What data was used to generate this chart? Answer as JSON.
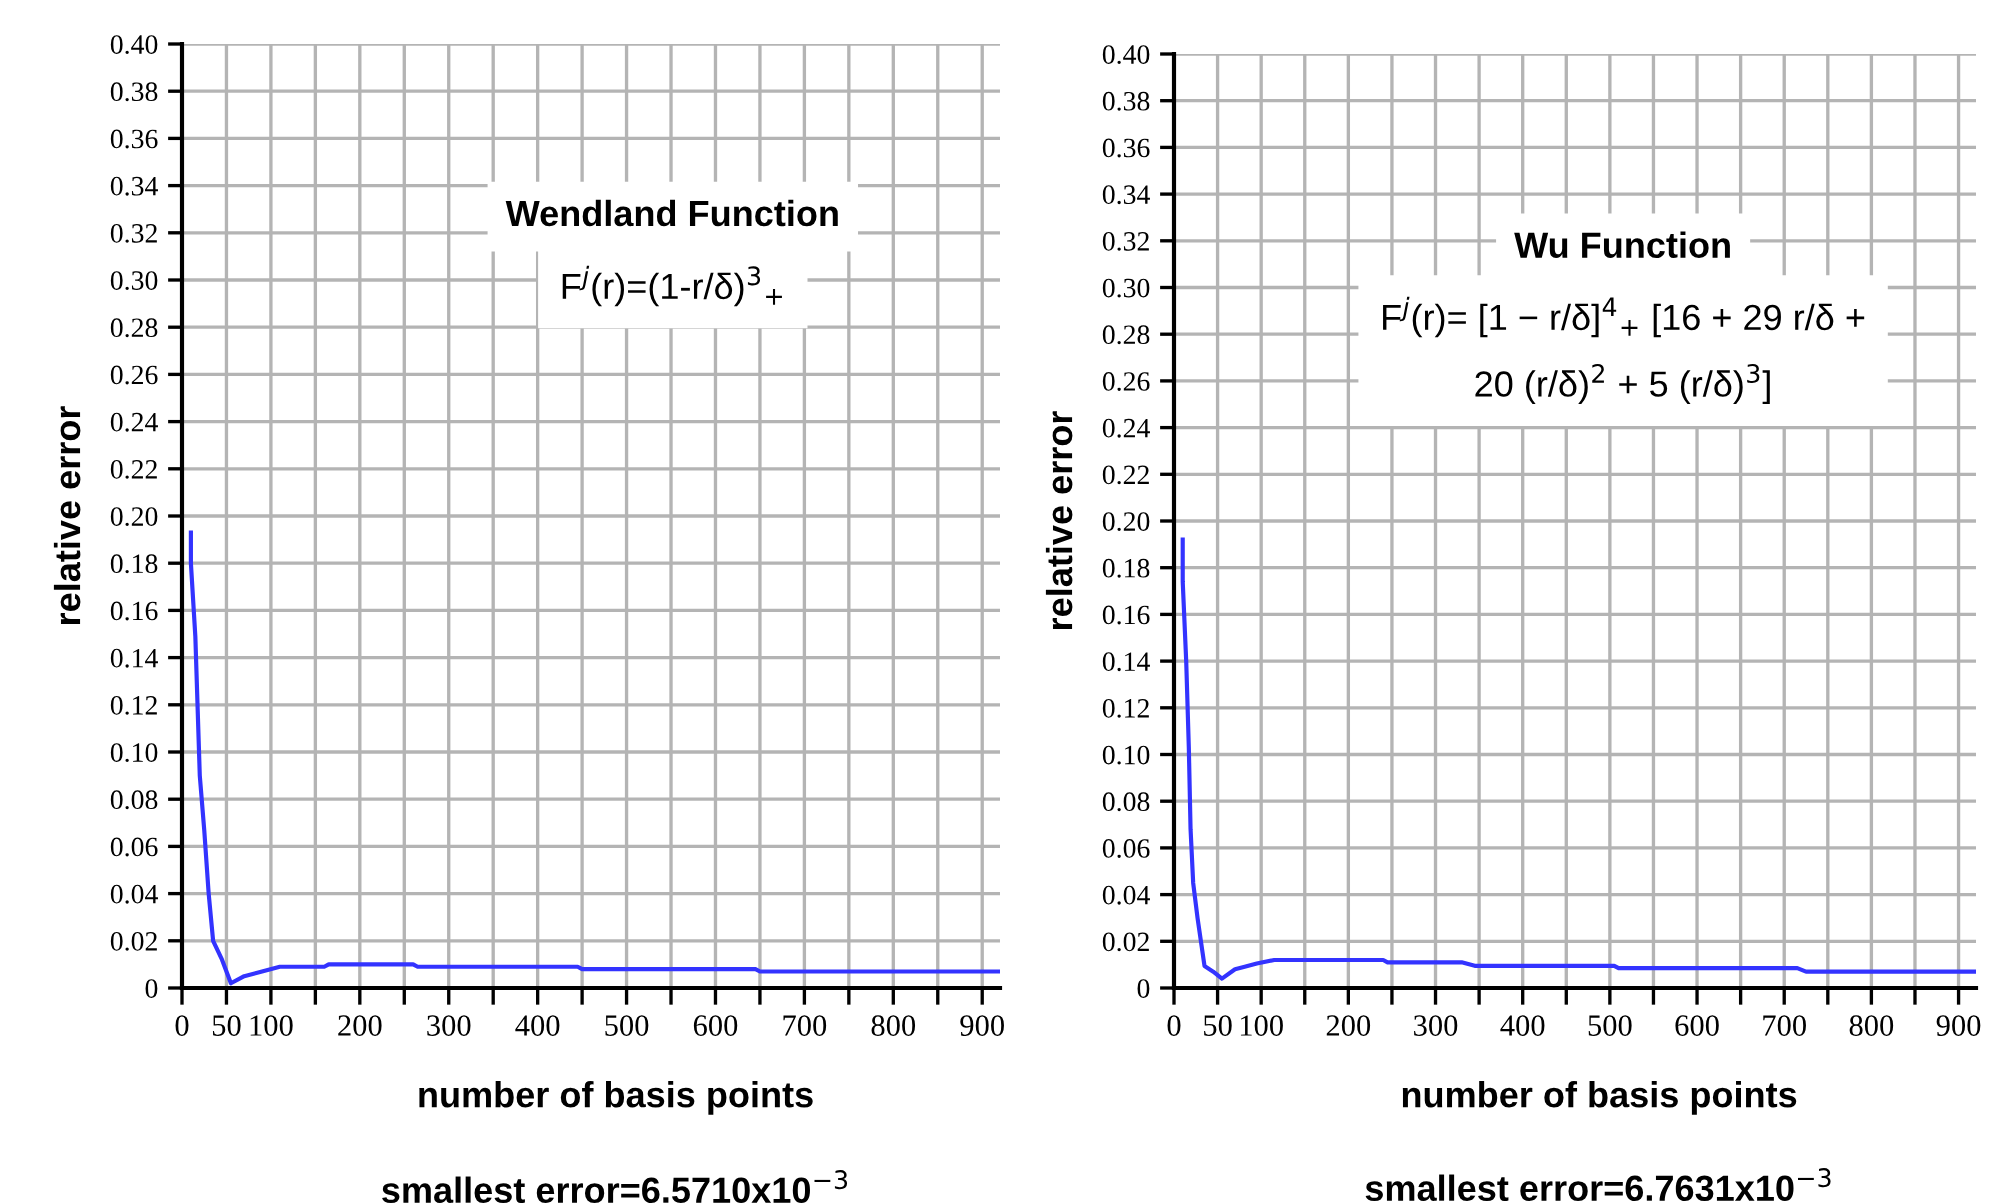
{
  "chart_data": [
    {
      "type": "line",
      "title": "Wendland Function",
      "xlabel": "number of basis points",
      "ylabel": "relative error",
      "annotations": [
        "F$^{j}$(r)=(1-r/δ)$^{3}$$_{+}$",
        "smallest error=6.5710x10$^{−3}$"
      ],
      "series": [
        {
          "color": "#3333ff",
          "x": [
            10,
            10,
            15,
            20,
            25,
            30,
            35,
            45,
            55,
            70,
            90,
            110,
            160,
            165,
            260,
            265,
            445,
            450,
            645,
            650,
            920
          ],
          "values": [
            0.193,
            0.18,
            0.149,
            0.09,
            0.067,
            0.04,
            0.02,
            0.012,
            0.002,
            0.005,
            0.007,
            0.009,
            0.009,
            0.01,
            0.01,
            0.009,
            0.009,
            0.008,
            0.008,
            0.007,
            0.007
          ]
        }
      ],
      "xlim": [
        0,
        920
      ],
      "xticks": [
        0,
        50,
        100,
        {
          "value": 150,
          "label": null
        },
        200,
        {
          "value": 250,
          "label": null
        },
        300,
        {
          "value": 350,
          "label": null
        },
        400,
        {
          "value": 450,
          "label": null
        },
        500,
        {
          "value": 550,
          "label": null
        },
        600,
        {
          "value": 650,
          "label": null
        },
        700,
        {
          "value": 750,
          "label": null
        },
        800,
        {
          "value": 850,
          "label": null
        },
        900
      ],
      "ylim": [
        0,
        0.4
      ],
      "yticks": [
        0,
        {
          "value": 0.02,
          "label": "0.02"
        },
        {
          "value": 0.04,
          "label": "0.04"
        },
        {
          "value": 0.06,
          "label": "0.06"
        },
        {
          "value": 0.08,
          "label": "0.08"
        },
        {
          "value": 0.1,
          "label": "0.10"
        },
        {
          "value": 0.12,
          "label": "0.12"
        },
        {
          "value": 0.14,
          "label": "0.14"
        },
        {
          "value": 0.16,
          "label": "0.16"
        },
        {
          "value": 0.18,
          "label": "0.18"
        },
        {
          "value": 0.2,
          "label": "0.20"
        },
        {
          "value": 0.22,
          "label": "0.22"
        },
        {
          "value": 0.24,
          "label": "0.24"
        },
        {
          "value": 0.26,
          "label": "0.26"
        },
        {
          "value": 0.28,
          "label": "0.28"
        },
        {
          "value": 0.3,
          "label": "0.30"
        },
        {
          "value": 0.32,
          "label": "0.32"
        },
        {
          "value": 0.34,
          "label": "0.34"
        },
        {
          "value": 0.36,
          "label": "0.36"
        },
        {
          "value": 0.38,
          "label": "0.38"
        },
        {
          "value": 0.4,
          "label": "0.40"
        }
      ],
      "grid": true
    },
    {
      "type": "line",
      "title": "Wu Function",
      "xlabel": "number of basis points",
      "ylabel": "relative error",
      "annotations": [
        "F$^{j}$(r)= [1 − r/δ]$^{4}$$_{+}$ [16 + 29 r/δ +\n20 (r/δ)$^{2}$ + 5 (r/δ)$^{3}$]",
        "smallest error=6.7631x10$^{−3}$"
      ],
      "series": [
        {
          "color": "#3333ff",
          "x": [
            10,
            10,
            14,
            17,
            19,
            22,
            27,
            35,
            45,
            55,
            70,
            80,
            95,
            115,
            240,
            245,
            330,
            345,
            505,
            510,
            715,
            725,
            920
          ],
          "values": [
            0.192,
            0.174,
            0.14,
            0.103,
            0.068,
            0.045,
            0.03,
            0.0094,
            0.007,
            0.004,
            0.008,
            0.009,
            0.0105,
            0.012,
            0.012,
            0.011,
            0.011,
            0.0095,
            0.0095,
            0.0085,
            0.0085,
            0.007,
            0.007
          ]
        }
      ],
      "xlim": [
        0,
        920
      ],
      "xticks": [
        0,
        50,
        100,
        {
          "value": 150,
          "label": null
        },
        200,
        {
          "value": 250,
          "label": null
        },
        300,
        {
          "value": 350,
          "label": null
        },
        400,
        {
          "value": 450,
          "label": null
        },
        500,
        {
          "value": 550,
          "label": null
        },
        600,
        {
          "value": 650,
          "label": null
        },
        700,
        {
          "value": 750,
          "label": null
        },
        800,
        {
          "value": 850,
          "label": null
        },
        900
      ],
      "ylim": [
        0,
        0.4
      ],
      "yticks": [
        0,
        {
          "value": 0.02,
          "label": "0.02"
        },
        {
          "value": 0.04,
          "label": "0.04"
        },
        {
          "value": 0.06,
          "label": "0.06"
        },
        {
          "value": 0.08,
          "label": "0.08"
        },
        {
          "value": 0.1,
          "label": "0.10"
        },
        {
          "value": 0.12,
          "label": "0.12"
        },
        {
          "value": 0.14,
          "label": "0.14"
        },
        {
          "value": 0.16,
          "label": "0.16"
        },
        {
          "value": 0.18,
          "label": "0.18"
        },
        {
          "value": 0.2,
          "label": "0.20"
        },
        {
          "value": 0.22,
          "label": "0.22"
        },
        {
          "value": 0.24,
          "label": "0.24"
        },
        {
          "value": 0.26,
          "label": "0.26"
        },
        {
          "value": 0.28,
          "label": "0.28"
        },
        {
          "value": 0.3,
          "label": "0.30"
        },
        {
          "value": 0.32,
          "label": "0.32"
        },
        {
          "value": 0.34,
          "label": "0.34"
        },
        {
          "value": 0.36,
          "label": "0.36"
        },
        {
          "value": 0.38,
          "label": "0.38"
        },
        {
          "value": 0.4,
          "label": "0.40"
        }
      ],
      "grid": true
    }
  ]
}
